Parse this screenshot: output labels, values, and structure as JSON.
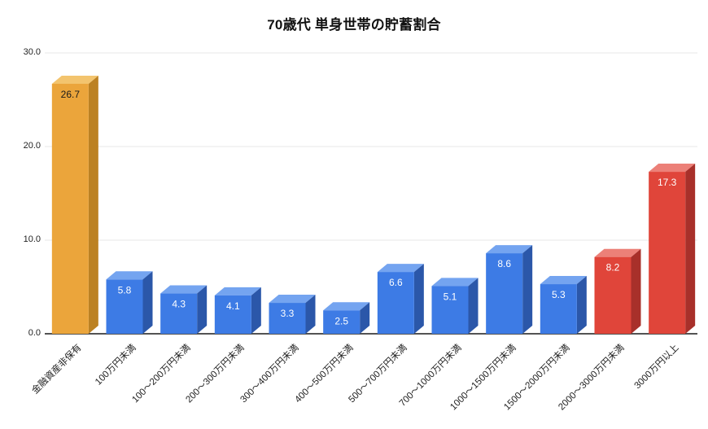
{
  "title": "70歳代 単身世帯の貯蓄割合",
  "chart_data": {
    "type": "bar",
    "title": "70歳代 単身世帯の貯蓄割合",
    "categories": [
      "金融資産非保有",
      "100万円未満",
      "100〜200万円未満",
      "200〜300万円未満",
      "300〜400万円未満",
      "400〜500万円未満",
      "500〜700万円未満",
      "700〜1000万円未満",
      "1000〜1500万円未満",
      "1500〜2000万円未満",
      "2000〜3000万円未満",
      "3000万円以上"
    ],
    "values": [
      26.7,
      5.8,
      4.3,
      4.1,
      3.3,
      2.5,
      6.6,
      5.1,
      8.6,
      5.3,
      8.2,
      17.3
    ],
    "value_labels": [
      "26.7",
      "5.8",
      "4.3",
      "4.1",
      "3.3",
      "2.5",
      "6.6",
      "5.1",
      "8.6",
      "5.3",
      "8.2",
      "17.3"
    ],
    "bar_colors": [
      "orange",
      "blue",
      "blue",
      "blue",
      "blue",
      "blue",
      "blue",
      "blue",
      "blue",
      "blue",
      "red",
      "red"
    ],
    "palette": {
      "orange": {
        "front": "#EBA53B",
        "top": "#F3C46E",
        "side": "#BC8122",
        "label": "#1a1a1a"
      },
      "blue": {
        "front": "#3D7BE5",
        "top": "#74A4F0",
        "side": "#2B57A9",
        "label": "#ffffff"
      },
      "red": {
        "front": "#E0453A",
        "top": "#EC8078",
        "side": "#A8302A",
        "label": "#ffffff"
      }
    },
    "xlabel": "",
    "ylabel": "",
    "ylim": [
      0,
      30
    ],
    "yticks": [
      0,
      10,
      20,
      30
    ],
    "ytick_labels": [
      "0.0",
      "10.0",
      "20.0",
      "30.0"
    ],
    "grid": true,
    "legend": "none",
    "style": "3d-bars"
  }
}
